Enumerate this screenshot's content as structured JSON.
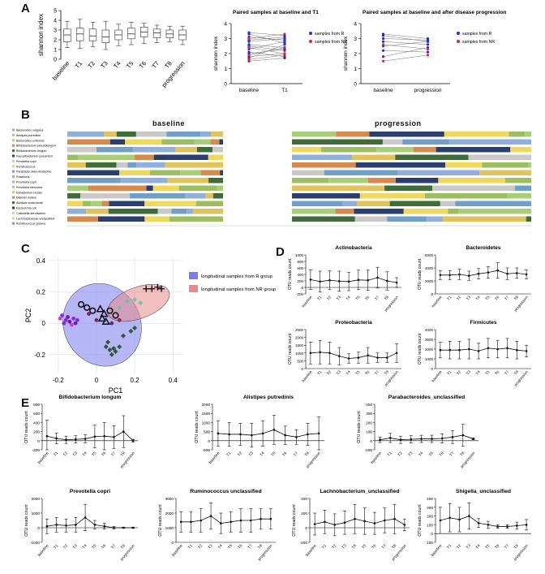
{
  "panels": {
    "A": "A",
    "B": "B",
    "C": "C",
    "D": "D",
    "E": "E"
  },
  "colors": {
    "r_group": "#2b2bd6",
    "nr_group": "#d62b2b",
    "r_ellipse": "#7c7cf0",
    "nr_ellipse": "#e88a8a",
    "bar_palette": [
      "#8fb0de",
      "#a8cf75",
      "#e0c35a",
      "#d98a4a",
      "#3f6d3a",
      "#2b3f6e",
      "#c9c9c9",
      "#f0d85a",
      "#6fa0c8",
      "#9bbf5e"
    ]
  },
  "chart_data": [
    {
      "id": "A1",
      "type": "box",
      "ylabel": "shannon index",
      "ylim": [
        0,
        5
      ],
      "yticks": [
        0,
        1,
        2,
        3,
        4,
        5
      ],
      "categories": [
        "baseline",
        "T1",
        "T2",
        "T3",
        "T4",
        "T5",
        "T6",
        "T7",
        "T8",
        "progression"
      ],
      "boxes": [
        {
          "min": 1.2,
          "q1": 1.8,
          "median": 2.5,
          "q3": 3.1,
          "max": 3.9
        },
        {
          "min": 1.1,
          "q1": 1.9,
          "median": 2.6,
          "q3": 3.2,
          "max": 4.1
        },
        {
          "min": 1.3,
          "q1": 1.9,
          "median": 2.4,
          "q3": 3.1,
          "max": 3.8
        },
        {
          "min": 1.0,
          "q1": 1.7,
          "median": 2.3,
          "q3": 3.0,
          "max": 3.9
        },
        {
          "min": 1.4,
          "q1": 2.0,
          "median": 2.5,
          "q3": 3.0,
          "max": 3.6
        },
        {
          "min": 1.5,
          "q1": 2.1,
          "median": 2.6,
          "q3": 3.2,
          "max": 3.8
        },
        {
          "min": 1.6,
          "q1": 2.3,
          "median": 2.8,
          "q3": 3.3,
          "max": 3.7
        },
        {
          "min": 1.7,
          "q1": 2.2,
          "median": 2.7,
          "q3": 3.1,
          "max": 3.5
        },
        {
          "min": 1.8,
          "q1": 2.2,
          "median": 2.6,
          "q3": 3.0,
          "max": 3.4
        },
        {
          "min": 1.5,
          "q1": 2.0,
          "median": 2.5,
          "q3": 3.0,
          "max": 3.4
        }
      ]
    },
    {
      "id": "A2",
      "type": "paired",
      "title": "Paired samples at baseline and T1",
      "ylabel": "shannon index",
      "ylim": [
        0,
        4
      ],
      "yticks": [
        0,
        1,
        2,
        3,
        4
      ],
      "categories": [
        "baseline",
        "T1"
      ],
      "legend": [
        "samples from R",
        "samples from NR"
      ],
      "pairs_R": [
        [
          3.4,
          3.2
        ],
        [
          3.1,
          2.9
        ],
        [
          2.9,
          3.1
        ],
        [
          2.6,
          2.4
        ],
        [
          2.3,
          2.8
        ],
        [
          2.0,
          2.3
        ],
        [
          1.8,
          2.0
        ],
        [
          1.5,
          1.7
        ],
        [
          3.3,
          2.7
        ],
        [
          2.8,
          3.0
        ],
        [
          2.5,
          2.2
        ],
        [
          2.1,
          1.8
        ],
        [
          1.7,
          2.6
        ]
      ],
      "pairs_NR": [
        [
          3.0,
          3.3
        ],
        [
          2.4,
          2.0
        ],
        [
          1.9,
          2.4
        ],
        [
          1.6,
          1.9
        ]
      ]
    },
    {
      "id": "A3",
      "type": "paired",
      "title": "Paired samples at baseline and after disease progression",
      "ylabel": "shannon index",
      "ylim": [
        0,
        4
      ],
      "yticks": [
        0,
        1,
        2,
        3,
        4
      ],
      "categories": [
        "baseline",
        "progression"
      ],
      "legend": [
        "samples from R",
        "samples from NR"
      ],
      "pairs_R": [
        [
          3.3,
          3.0
        ],
        [
          3.0,
          2.9
        ],
        [
          2.8,
          2.6
        ],
        [
          2.5,
          2.8
        ],
        [
          2.2,
          2.1
        ],
        [
          1.8,
          2.4
        ],
        [
          3.2,
          2.8
        ]
      ],
      "pairs_NR": [
        [
          1.5,
          1.9
        ],
        [
          2.6,
          2.3
        ]
      ]
    },
    {
      "id": "B",
      "type": "stacked-bar",
      "titles": [
        "baseline",
        "progression"
      ],
      "legend": [
        "Bacteroides vulgatus",
        "Alistipes putredinis",
        "Bacteroides uniformis",
        "Bifidobacterium pseudolongum",
        "Bifidobacterium longum",
        "Faecalibacterium prausnitzii",
        "Prevotella copri",
        "Ruminococcus",
        "Parabacteroides distasonis",
        "Roseburia",
        "Prevotella copri",
        "Prevotella stercorea",
        "Eubacterium rectale",
        "Dialister invisus",
        "Alistipes onderdonkii",
        "Escherichia coli",
        "Collinsella aerofaciens",
        "Lachnospiraceae unclassified",
        "Ruminococcus gnavus"
      ],
      "rows": 12
    },
    {
      "id": "C",
      "type": "scatter",
      "xlabel": "PC1",
      "ylabel": "PC2",
      "xlim": [
        -0.25,
        0.45
      ],
      "ylim": [
        -0.32,
        0.42
      ],
      "xticks": [
        -0.2,
        0.0,
        0.2,
        0.4
      ],
      "yticks": [
        -0.2,
        0.0,
        0.2,
        0.4
      ],
      "legend": [
        "longitudinal samples from R group",
        "longitudinal samples from NR group"
      ],
      "ellipse_R": {
        "cx": 0.03,
        "cy": -0.01,
        "rx": 0.2,
        "ry": 0.27,
        "angle": -30
      },
      "ellipse_NR": {
        "cx": 0.22,
        "cy": 0.13,
        "rx": 0.17,
        "ry": 0.1,
        "angle": -20
      },
      "points": [
        {
          "x": -0.18,
          "y": 0.05,
          "c": "#8a2be2",
          "m": "dot"
        },
        {
          "x": -0.16,
          "y": 0.02,
          "c": "#8a2be2",
          "m": "dot"
        },
        {
          "x": -0.17,
          "y": 0.0,
          "c": "#8a2be2",
          "m": "dot"
        },
        {
          "x": -0.15,
          "y": 0.04,
          "c": "#6a1bb2",
          "m": "dot"
        },
        {
          "x": -0.14,
          "y": 0.01,
          "c": "#6a1bb2",
          "m": "dot"
        },
        {
          "x": -0.12,
          "y": 0.03,
          "c": "#8a2be2",
          "m": "dot"
        },
        {
          "x": -0.11,
          "y": 0.0,
          "c": "#6a1bb2",
          "m": "dot"
        },
        {
          "x": -0.13,
          "y": -0.01,
          "c": "#d03bd0",
          "m": "dot"
        },
        {
          "x": -0.1,
          "y": 0.02,
          "c": "#8a2be2",
          "m": "dot"
        },
        {
          "x": -0.19,
          "y": 0.03,
          "c": "#d03bd0",
          "m": "dot"
        },
        {
          "x": -0.08,
          "y": 0.12,
          "c": "#111111",
          "m": "ring"
        },
        {
          "x": -0.05,
          "y": 0.1,
          "c": "#111111",
          "m": "ring"
        },
        {
          "x": -0.02,
          "y": 0.08,
          "c": "#111111",
          "m": "ring"
        },
        {
          "x": 0.07,
          "y": 0.08,
          "c": "#111111",
          "m": "ring"
        },
        {
          "x": 0.1,
          "y": 0.05,
          "c": "#111111",
          "m": "ring"
        },
        {
          "x": 0.02,
          "y": 0.09,
          "c": "#111111",
          "m": "tri"
        },
        {
          "x": 0.04,
          "y": 0.06,
          "c": "#111111",
          "m": "tri"
        },
        {
          "x": 0.03,
          "y": 0.03,
          "c": "#111111",
          "m": "tri"
        },
        {
          "x": 0.05,
          "y": 0.01,
          "c": "#111111",
          "m": "tri"
        },
        {
          "x": -0.04,
          "y": 0.06,
          "c": "#7a2a5a",
          "m": "dot"
        },
        {
          "x": 0.0,
          "y": 0.02,
          "c": "#7a2a5a",
          "m": "dot"
        },
        {
          "x": 0.08,
          "y": 0.0,
          "c": "#7a2a5a",
          "m": "dot"
        },
        {
          "x": 0.12,
          "y": 0.02,
          "c": "#7a2a5a",
          "m": "dot"
        },
        {
          "x": 0.05,
          "y": -0.15,
          "c": "#2a5a3a",
          "m": "diamond"
        },
        {
          "x": 0.07,
          "y": -0.17,
          "c": "#2a5a3a",
          "m": "diamond"
        },
        {
          "x": 0.09,
          "y": -0.16,
          "c": "#2a5a3a",
          "m": "diamond"
        },
        {
          "x": 0.1,
          "y": -0.18,
          "c": "#2a5a3a",
          "m": "diamond"
        },
        {
          "x": 0.12,
          "y": -0.15,
          "c": "#2a5a3a",
          "m": "diamond"
        },
        {
          "x": 0.08,
          "y": -0.2,
          "c": "#2a5a3a",
          "m": "diamond"
        },
        {
          "x": 0.06,
          "y": -0.12,
          "c": "#2a5a3a",
          "m": "diamond"
        },
        {
          "x": 0.14,
          "y": -0.08,
          "c": "#2a5a3a",
          "m": "diamond"
        },
        {
          "x": 0.18,
          "y": -0.05,
          "c": "#2a5a3a",
          "m": "diamond"
        },
        {
          "x": 0.2,
          "y": -0.03,
          "c": "#2a5a3a",
          "m": "diamond"
        },
        {
          "x": 0.16,
          "y": 0.14,
          "c": "#6fc3a8",
          "m": "diamond"
        },
        {
          "x": 0.2,
          "y": 0.15,
          "c": "#6fc3a8",
          "m": "diamond"
        },
        {
          "x": 0.23,
          "y": 0.13,
          "c": "#6fc3a8",
          "m": "diamond"
        },
        {
          "x": 0.12,
          "y": 0.1,
          "c": "#6fc3a8",
          "m": "diamond"
        },
        {
          "x": 0.26,
          "y": 0.22,
          "c": "#111111",
          "m": "cross"
        },
        {
          "x": 0.29,
          "y": 0.22,
          "c": "#111111",
          "m": "cross"
        },
        {
          "x": 0.32,
          "y": 0.23,
          "c": "#111111",
          "m": "cross"
        },
        {
          "x": 0.34,
          "y": 0.22,
          "c": "#111111",
          "m": "cross"
        }
      ]
    }
  ],
  "line_panels_D": [
    {
      "title": "Actinobacteria",
      "ylabel": "OTU reads count",
      "ylim": [
        -200,
        1000
      ],
      "yticks": [
        -200,
        0,
        200,
        400,
        600,
        800,
        1000
      ],
      "values": [
        240,
        180,
        220,
        190,
        180,
        230,
        220,
        300,
        200,
        150
      ],
      "err": [
        300,
        320,
        290,
        310,
        280,
        300,
        310,
        320,
        280,
        150
      ]
    },
    {
      "title": "Bacteroidetes",
      "ylabel": "OTU reads count",
      "ylim": [
        0,
        6000
      ],
      "yticks": [
        0,
        2000,
        4000,
        6000
      ],
      "values": [
        2900,
        2900,
        3000,
        2800,
        3100,
        3300,
        3600,
        3100,
        3200,
        3000
      ],
      "err": [
        700,
        700,
        800,
        700,
        800,
        900,
        1200,
        900,
        800,
        700
      ]
    },
    {
      "title": "Proteobacteria",
      "ylabel": "OTU reads count",
      "ylim": [
        0,
        2500
      ],
      "yticks": [
        0,
        500,
        1000,
        1500,
        2000,
        2500
      ],
      "values": [
        1000,
        1050,
        1000,
        800,
        650,
        700,
        850,
        700,
        700,
        1000
      ],
      "err": [
        700,
        750,
        700,
        550,
        300,
        350,
        500,
        300,
        300,
        600
      ]
    },
    {
      "title": "Firmicutes",
      "ylabel": "OTU reads count",
      "ylim": [
        0,
        4000
      ],
      "yticks": [
        0,
        1000,
        2000,
        3000,
        4000
      ],
      "values": [
        1900,
        1900,
        1900,
        2000,
        1800,
        2100,
        2000,
        2100,
        1900,
        1800
      ],
      "err": [
        800,
        900,
        900,
        1000,
        800,
        1000,
        900,
        1000,
        900,
        600
      ]
    }
  ],
  "line_panels_E": [
    {
      "title": "Bifidobacterium longum",
      "ylabel": "OTU reads count",
      "ylim": [
        -200,
        800
      ],
      "yticks": [
        -200,
        0,
        200,
        400,
        600,
        800
      ],
      "values": [
        100,
        50,
        20,
        30,
        40,
        90,
        100,
        80,
        200,
        0
      ],
      "err": [
        350,
        120,
        80,
        80,
        90,
        250,
        300,
        250,
        350,
        30
      ]
    },
    {
      "title": "Alistipes putredinis",
      "ylabel": "OTU reads count",
      "ylim": [
        -500,
        2000
      ],
      "yticks": [
        -500,
        0,
        500,
        1000,
        1500,
        2000
      ],
      "values": [
        400,
        350,
        350,
        300,
        400,
        600,
        300,
        200,
        350,
        400
      ],
      "err": [
        700,
        650,
        600,
        650,
        700,
        800,
        500,
        400,
        600,
        900
      ]
    },
    {
      "title": "Parabacteroides_unclassified",
      "ylabel": "OTU reads count",
      "ylim": [
        -100,
        400
      ],
      "yticks": [
        -100,
        0,
        100,
        200,
        300,
        400
      ],
      "values": [
        10,
        30,
        10,
        15,
        20,
        20,
        25,
        40,
        60,
        20
      ],
      "err": [
        30,
        50,
        40,
        40,
        40,
        40,
        50,
        70,
        120,
        10
      ]
    },
    {
      "title": "Prevotella copri",
      "ylabel": "OTU reads count",
      "ylim": [
        -1000,
        2000
      ],
      "yticks": [
        -1000,
        0,
        1000,
        2000
      ],
      "values": [
        100,
        200,
        150,
        200,
        700,
        200,
        100,
        0,
        0,
        0
      ],
      "err": [
        500,
        500,
        450,
        500,
        900,
        300,
        200,
        80,
        30,
        30
      ]
    },
    {
      "title": "Ruminococcus unclassified",
      "ylabel": "OTU reads count",
      "ylim": [
        0,
        3000
      ],
      "yticks": [
        0,
        1000,
        2000,
        3000
      ],
      "values": [
        1400,
        1400,
        1500,
        1800,
        1300,
        1400,
        1500,
        1500,
        1600,
        1600
      ],
      "err": [
        700,
        700,
        800,
        900,
        700,
        700,
        800,
        800,
        700,
        700
      ]
    },
    {
      "title": "Lachnobacterium_unclassified",
      "ylabel": "OTU reads count",
      "ylim": [
        -200,
        400
      ],
      "yticks": [
        -200,
        0,
        200,
        400
      ],
      "values": [
        50,
        80,
        40,
        70,
        120,
        90,
        60,
        100,
        120,
        40
      ],
      "err": [
        150,
        160,
        150,
        160,
        200,
        180,
        150,
        170,
        200,
        80
      ]
    },
    {
      "title": "Shigella_unclassified",
      "ylabel": "OTU reads count",
      "ylim": [
        -100,
        400
      ],
      "yticks": [
        -100,
        0,
        100,
        200,
        300,
        400
      ],
      "values": [
        150,
        180,
        160,
        200,
        120,
        100,
        80,
        80,
        90,
        100
      ],
      "err": [
        150,
        160,
        140,
        150,
        50,
        40,
        20,
        20,
        40,
        60
      ]
    }
  ],
  "timepoints": [
    "baseline",
    "T1",
    "T2",
    "T3",
    "T4",
    "T5",
    "T6",
    "T7",
    "T8",
    "progression"
  ]
}
